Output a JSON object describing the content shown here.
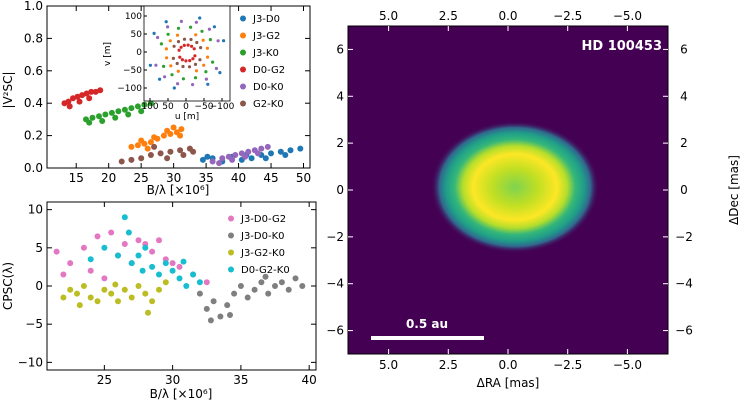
{
  "chart_data": [
    {
      "id": "v2",
      "type": "scatter",
      "xlabel": "B/λ [×10⁶]",
      "ylabel": "|V²SC|",
      "xlim": [
        10.5,
        51
      ],
      "ylim": [
        0,
        1.0
      ],
      "xticks": [
        15,
        20,
        25,
        30,
        35,
        40,
        45,
        50
      ],
      "yticks": [
        0.0,
        0.2,
        0.4,
        0.6,
        0.8,
        1.0
      ],
      "series": [
        {
          "name": "J3-D0",
          "color": "#1f77b4",
          "points": [
            [
              34.5,
              0.05
            ],
            [
              36,
              0.06
            ],
            [
              37.5,
              0.04
            ],
            [
              39,
              0.07
            ],
            [
              40.5,
              0.05
            ],
            [
              42,
              0.06
            ],
            [
              43.5,
              0.08
            ],
            [
              45,
              0.09
            ],
            [
              46.5,
              0.1
            ],
            [
              48,
              0.11
            ],
            [
              49.5,
              0.12
            ],
            [
              35.2,
              0.07
            ],
            [
              41.2,
              0.08
            ],
            [
              47.2,
              0.08
            ],
            [
              44.2,
              0.06
            ]
          ]
        },
        {
          "name": "J3-G2",
          "color": "#ff7f0e",
          "points": [
            [
              23.5,
              0.13
            ],
            [
              24.5,
              0.14
            ],
            [
              25.5,
              0.15
            ],
            [
              26.5,
              0.16
            ],
            [
              27.5,
              0.18
            ],
            [
              28.5,
              0.2
            ],
            [
              29.5,
              0.21
            ],
            [
              30.5,
              0.22
            ],
            [
              31.2,
              0.24
            ],
            [
              25,
              0.17
            ],
            [
              27,
              0.19
            ],
            [
              29,
              0.23
            ],
            [
              30,
              0.25
            ],
            [
              31,
              0.2
            ],
            [
              26,
              0.12
            ]
          ]
        },
        {
          "name": "J3-K0",
          "color": "#2ca02c",
          "points": [
            [
              16.5,
              0.3
            ],
            [
              17.5,
              0.31
            ],
            [
              18.5,
              0.32
            ],
            [
              19.5,
              0.33
            ],
            [
              20.5,
              0.34
            ],
            [
              21.5,
              0.35
            ],
            [
              22.5,
              0.36
            ],
            [
              23.5,
              0.37
            ],
            [
              24.5,
              0.38
            ],
            [
              25.5,
              0.39
            ],
            [
              26.5,
              0.4
            ],
            [
              17,
              0.28
            ],
            [
              19,
              0.29
            ],
            [
              21,
              0.31
            ],
            [
              23,
              0.33
            ],
            [
              25,
              0.35
            ]
          ]
        },
        {
          "name": "D0-G2",
          "color": "#d62728",
          "points": [
            [
              13.2,
              0.4
            ],
            [
              13.8,
              0.41
            ],
            [
              14.5,
              0.43
            ],
            [
              15.2,
              0.44
            ],
            [
              15.9,
              0.45
            ],
            [
              16.6,
              0.46
            ],
            [
              17.3,
              0.47
            ],
            [
              18,
              0.47
            ],
            [
              18.7,
              0.48
            ],
            [
              14,
              0.38
            ],
            [
              15.5,
              0.41
            ],
            [
              17,
              0.43
            ]
          ]
        },
        {
          "name": "D0-K0",
          "color": "#9467bd",
          "points": [
            [
              36,
              0.04
            ],
            [
              37.5,
              0.06
            ],
            [
              38.5,
              0.07
            ],
            [
              39.5,
              0.08
            ],
            [
              40.5,
              0.09
            ],
            [
              41.5,
              0.1
            ],
            [
              42.5,
              0.11
            ],
            [
              43.5,
              0.12
            ],
            [
              44.5,
              0.13
            ],
            [
              37,
              0.03
            ],
            [
              39,
              0.05
            ],
            [
              41,
              0.07
            ],
            [
              43,
              0.09
            ]
          ]
        },
        {
          "name": "G2-K0",
          "color": "#8c564b",
          "points": [
            [
              22,
              0.04
            ],
            [
              23.5,
              0.05
            ],
            [
              25,
              0.06
            ],
            [
              26.5,
              0.08
            ],
            [
              28,
              0.09
            ],
            [
              29.5,
              0.1
            ],
            [
              31,
              0.11
            ],
            [
              32.5,
              0.12
            ],
            [
              27,
              0.13
            ],
            [
              29,
              0.06
            ],
            [
              31.5,
              0.08
            ],
            [
              33,
              0.1
            ]
          ]
        }
      ],
      "inset": {
        "xlabel": "u [m]",
        "ylabel": "v [m]",
        "xticks": [
          100,
          50,
          0,
          -50,
          -100
        ],
        "yticks": [
          100,
          50,
          0,
          -50,
          -100
        ]
      }
    },
    {
      "id": "cp",
      "type": "scatter",
      "xlabel": "B/λ [×10⁶]",
      "ylabel": "CPSC(λ)",
      "xlim": [
        20.8,
        40.5
      ],
      "ylim": [
        -11,
        11
      ],
      "xticks": [
        25,
        30,
        35,
        40
      ],
      "yticks": [
        -10,
        -5,
        0,
        5,
        10
      ],
      "series": [
        {
          "name": "J3-D0-G2",
          "color": "#e377c2",
          "points": [
            [
              21.5,
              4.5
            ],
            [
              22.5,
              3
            ],
            [
              23.5,
              5
            ],
            [
              24.5,
              6.5
            ],
            [
              25.5,
              7
            ],
            [
              26.5,
              5.5
            ],
            [
              27.5,
              6
            ],
            [
              28.5,
              4.5
            ],
            [
              29.5,
              3.5
            ],
            [
              30.5,
              2.5
            ],
            [
              31.5,
              1.5
            ],
            [
              32.5,
              0.5
            ],
            [
              22,
              1.5
            ],
            [
              24,
              2
            ],
            [
              26,
              4
            ],
            [
              28,
              5.5
            ],
            [
              30,
              3
            ],
            [
              25,
              1
            ],
            [
              27,
              3
            ],
            [
              29,
              6
            ]
          ]
        },
        {
          "name": "J3-D0-K0",
          "color": "#7f7f7f",
          "points": [
            [
              32,
              -1
            ],
            [
              32.5,
              -3
            ],
            [
              33,
              -2
            ],
            [
              33.5,
              -4
            ],
            [
              34,
              -2.5
            ],
            [
              34.5,
              -1
            ],
            [
              35,
              0
            ],
            [
              35.5,
              -1.5
            ],
            [
              36,
              -0.5
            ],
            [
              36.5,
              0.5
            ],
            [
              37,
              -1
            ],
            [
              37.5,
              0
            ],
            [
              38,
              0.5
            ],
            [
              38.5,
              -0.5
            ],
            [
              39,
              1
            ],
            [
              39.5,
              0
            ],
            [
              32.8,
              -4.5
            ],
            [
              34.2,
              -3.8
            ],
            [
              36.8,
              1.2
            ]
          ]
        },
        {
          "name": "J3-G2-K0",
          "color": "#bcbd22",
          "points": [
            [
              22,
              -1.5
            ],
            [
              22.5,
              -0.5
            ],
            [
              23,
              -1
            ],
            [
              23.5,
              0
            ],
            [
              24,
              -1.5
            ],
            [
              24.5,
              -2
            ],
            [
              25,
              -0.5
            ],
            [
              25.5,
              -1
            ],
            [
              26,
              -2
            ],
            [
              26.5,
              -0.5
            ],
            [
              27,
              -1.5
            ],
            [
              27.5,
              0
            ],
            [
              28,
              -1
            ],
            [
              28.5,
              -2
            ],
            [
              29,
              -0.5
            ],
            [
              29.5,
              0.5
            ],
            [
              23.2,
              -2.5
            ],
            [
              25.8,
              0.2
            ],
            [
              28.2,
              -3.5
            ]
          ]
        },
        {
          "name": "D0-G2-K0",
          "color": "#17becf",
          "points": [
            [
              24,
              3.5
            ],
            [
              25,
              5
            ],
            [
              26,
              4
            ],
            [
              26.5,
              9
            ],
            [
              27,
              3
            ],
            [
              27.5,
              4
            ],
            [
              28,
              5
            ],
            [
              28.5,
              2.5
            ],
            [
              29,
              1.5
            ],
            [
              29.5,
              3
            ],
            [
              30,
              2
            ],
            [
              30.5,
              1
            ],
            [
              31,
              0
            ],
            [
              31.5,
              1.5
            ],
            [
              32,
              0.5
            ],
            [
              26.8,
              7
            ],
            [
              27.8,
              2
            ],
            [
              30.8,
              3.2
            ]
          ]
        }
      ]
    },
    {
      "id": "image",
      "type": "heatmap",
      "title": "HD 100453",
      "xlabel": "ΔRA [mas]",
      "ylabel": "ΔDec [mas]",
      "xlim": [
        6.7,
        -6.7
      ],
      "ylim": [
        -7.0,
        7.0
      ],
      "xticks": [
        5.0,
        2.5,
        0.0,
        -2.5,
        -5.0
      ],
      "yticks": [
        6,
        4,
        2,
        0,
        -2,
        -4,
        -6
      ],
      "scale_bar": "0.5 au"
    }
  ]
}
